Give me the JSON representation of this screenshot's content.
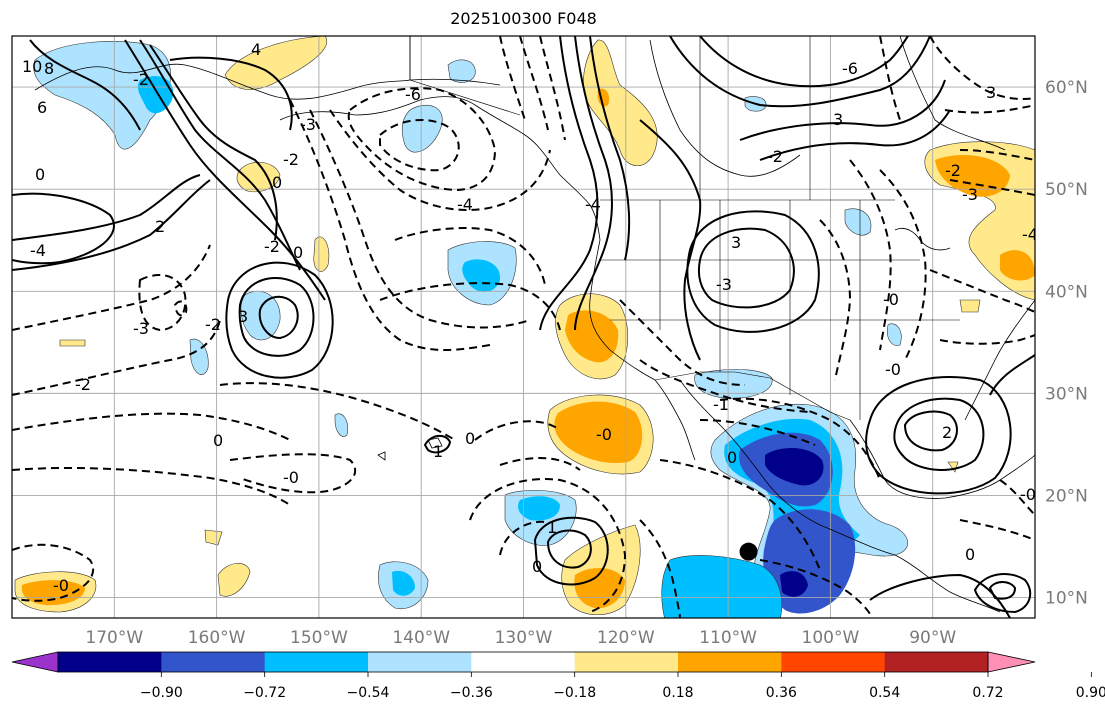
{
  "title": "2025100300 F048",
  "map": {
    "projection": "equirectangular",
    "lon_range": [
      -180,
      -80
    ],
    "lat_range": [
      8,
      65
    ],
    "longitude_labels": [
      "170°W",
      "160°W",
      "150°W",
      "140°W",
      "130°W",
      "120°W",
      "110°W",
      "100°W",
      "90°W"
    ],
    "latitude_labels": [
      "60°N",
      "50°N",
      "40°N",
      "30°N",
      "20°N",
      "10°N"
    ],
    "grid": true,
    "marker": {
      "type": "filled-circle",
      "lon": -108,
      "lat": 14.5
    },
    "contour_line_style": {
      "positive": "solid",
      "negative": "dashed"
    }
  },
  "colorbar": {
    "orientation": "horizontal",
    "extend": "both",
    "tick_labels": [
      "−0.90",
      "−0.72",
      "−0.54",
      "−0.36",
      "−0.18",
      "0.18",
      "0.36",
      "0.54",
      "0.72",
      "0.90"
    ],
    "colors": [
      "#9933cc",
      "#00008b",
      "#3355cc",
      "#00bfff",
      "#aee3ff",
      "#ffffff",
      "#ffe98a",
      "#ffa500",
      "#ff4500",
      "#b22222",
      "#ff8fb4"
    ]
  },
  "shading": {
    "colors": {
      "light_blue": "#aee3ff",
      "blue": "#00bfff",
      "mid_blue": "#3355cc",
      "navy": "#00008b",
      "yellow": "#ffe98a",
      "orange": "#ffa500"
    }
  },
  "contour_labels": {
    "l1": "10",
    "l2": "8",
    "l3": "6",
    "l4": "-2",
    "l5": "4",
    "l6": "0",
    "l7": "0",
    "l8": "-2",
    "l9": "-4",
    "l10": "-3",
    "l11": "-2",
    "l12": "3",
    "l13": "-2",
    "l14": "-0",
    "l15": "-0",
    "l16": "0",
    "l17": "-4",
    "l18": "0",
    "l19": "-3",
    "l20": "-2",
    "l21": "2",
    "l22": "-6",
    "l23": "-6",
    "l24": "3",
    "l25": "3",
    "l26": "-0",
    "l27": "0",
    "l28": "1",
    "l29": "-2",
    "l30": "2",
    "l31": "-0",
    "l32": "-0",
    "l33": "-2",
    "l34": "-4",
    "l35": "3",
    "l36": "-3",
    "l37": "-3",
    "l38": "-1",
    "l39": "0",
    "l40": "1",
    "l41": "0",
    "l42": "0",
    "l43": "-0",
    "l44": "-4"
  }
}
